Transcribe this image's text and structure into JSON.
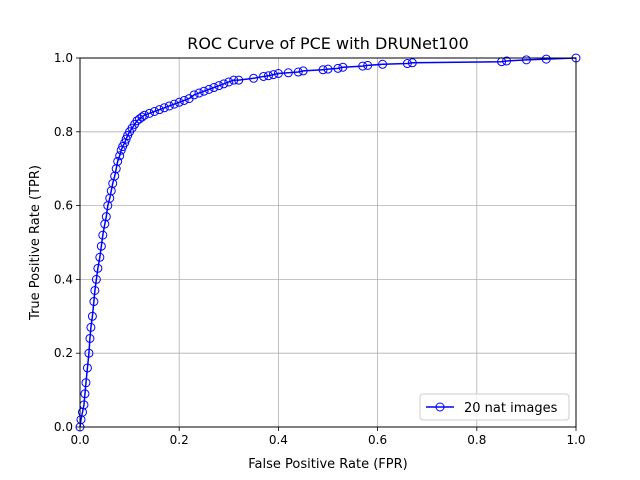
{
  "chart_data": {
    "type": "line",
    "title": "ROC Curve of PCE with DRUNet100",
    "xlabel": "False Positive Rate (FPR)",
    "ylabel": "True Positive Rate (TPR)",
    "xlim": [
      0,
      1
    ],
    "ylim": [
      0,
      1
    ],
    "xticks": [
      "0.0",
      "0.2",
      "0.4",
      "0.6",
      "0.8",
      "1.0"
    ],
    "yticks": [
      "0.0",
      "0.2",
      "0.4",
      "0.6",
      "0.8",
      "1.0"
    ],
    "grid": true,
    "legend_position": "bottom-right",
    "series": [
      {
        "name": "20 nat images",
        "color": "#0000ff",
        "marker": "open-circle",
        "x": [
          0.0,
          0.002,
          0.005,
          0.008,
          0.01,
          0.012,
          0.015,
          0.018,
          0.02,
          0.022,
          0.025,
          0.028,
          0.03,
          0.033,
          0.036,
          0.04,
          0.043,
          0.046,
          0.05,
          0.053,
          0.056,
          0.06,
          0.063,
          0.066,
          0.07,
          0.073,
          0.076,
          0.08,
          0.083,
          0.086,
          0.09,
          0.093,
          0.096,
          0.1,
          0.105,
          0.11,
          0.115,
          0.12,
          0.125,
          0.13,
          0.14,
          0.15,
          0.16,
          0.17,
          0.18,
          0.19,
          0.2,
          0.21,
          0.22,
          0.23,
          0.24,
          0.25,
          0.26,
          0.27,
          0.28,
          0.29,
          0.3,
          0.31,
          0.32,
          0.35,
          0.37,
          0.38,
          0.39,
          0.4,
          0.42,
          0.44,
          0.45,
          0.49,
          0.5,
          0.52,
          0.53,
          0.57,
          0.58,
          0.61,
          0.66,
          0.67,
          0.85,
          0.86,
          0.9,
          0.94,
          1.0
        ],
        "y": [
          0.0,
          0.02,
          0.04,
          0.06,
          0.09,
          0.12,
          0.16,
          0.2,
          0.24,
          0.27,
          0.3,
          0.34,
          0.37,
          0.4,
          0.43,
          0.46,
          0.49,
          0.52,
          0.55,
          0.57,
          0.6,
          0.62,
          0.64,
          0.66,
          0.68,
          0.7,
          0.72,
          0.735,
          0.75,
          0.76,
          0.77,
          0.78,
          0.79,
          0.8,
          0.81,
          0.82,
          0.83,
          0.835,
          0.84,
          0.845,
          0.85,
          0.855,
          0.86,
          0.865,
          0.87,
          0.875,
          0.88,
          0.885,
          0.89,
          0.9,
          0.905,
          0.91,
          0.915,
          0.92,
          0.925,
          0.93,
          0.935,
          0.94,
          0.94,
          0.945,
          0.95,
          0.952,
          0.955,
          0.958,
          0.96,
          0.962,
          0.965,
          0.968,
          0.97,
          0.972,
          0.975,
          0.978,
          0.98,
          0.983,
          0.985,
          0.987,
          0.99,
          0.992,
          0.995,
          0.997,
          1.0
        ]
      }
    ]
  }
}
